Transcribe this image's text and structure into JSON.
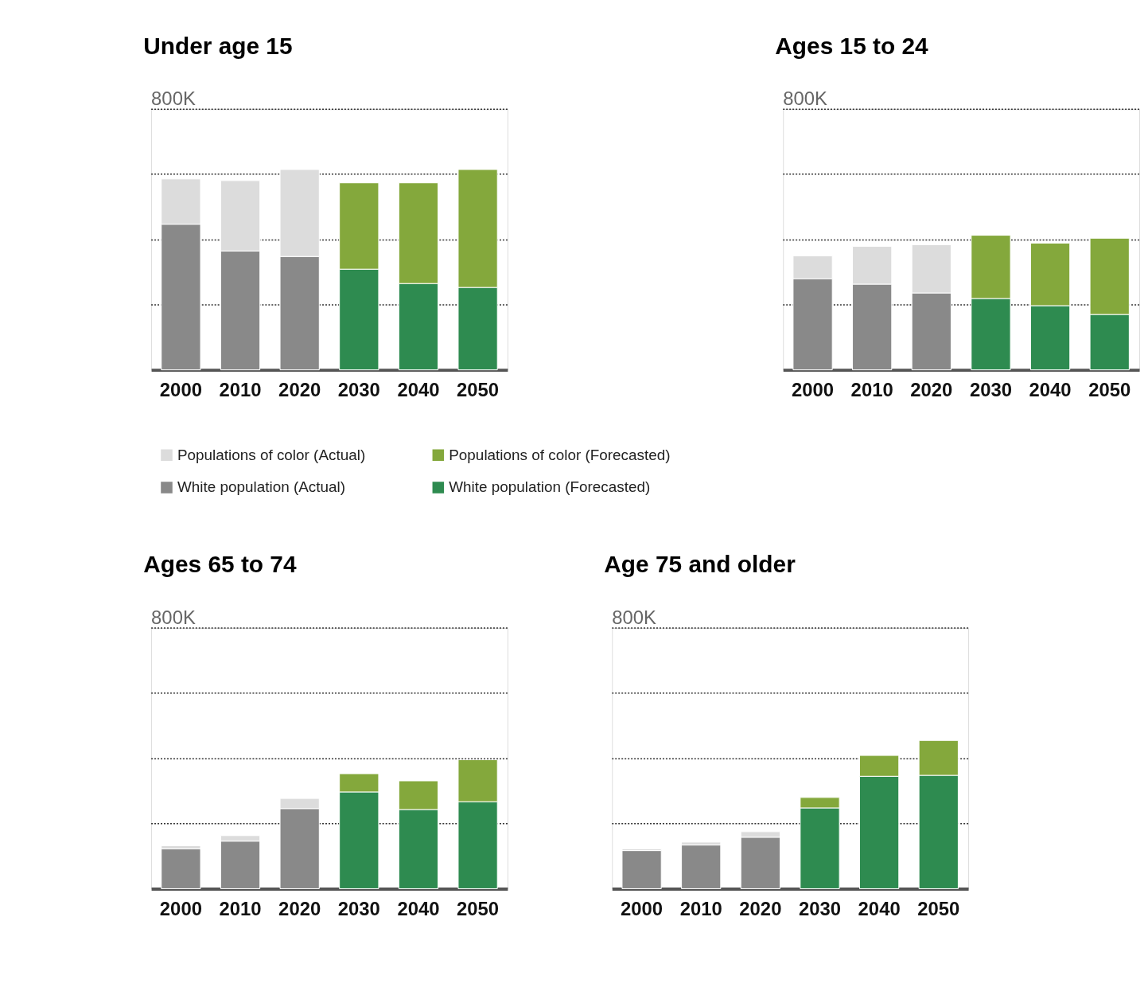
{
  "chart_data": [
    {
      "type": "bar",
      "title": "Under age 15",
      "stacked": true,
      "categories": [
        "2000",
        "2010",
        "2020",
        "2030",
        "2040",
        "2050"
      ],
      "ylim": [
        0,
        800000
      ],
      "yticks": [
        {
          "value": 200000,
          "label": null
        },
        {
          "value": 400000,
          "label": null
        },
        {
          "value": 600000,
          "label": null
        },
        {
          "value": 800000,
          "label": "800K"
        }
      ],
      "grid": "y",
      "legend": "bottom",
      "series": [
        {
          "name": "White population (Actual)",
          "color": "#898989",
          "values": [
            447000,
            365000,
            348000,
            null,
            null,
            null
          ]
        },
        {
          "name": "Populations of color (Actual)",
          "color": "#dcdcdc",
          "values": [
            139000,
            216000,
            267000,
            null,
            null,
            null
          ]
        },
        {
          "name": "White population (Forecasted)",
          "color": "#2e8b50",
          "values": [
            null,
            null,
            null,
            309000,
            265000,
            253000
          ]
        },
        {
          "name": "Populations of color (Forecasted)",
          "color": "#84a83c",
          "values": [
            null,
            null,
            null,
            265000,
            309000,
            362000
          ]
        }
      ]
    },
    {
      "type": "bar",
      "title": "Ages 15 to 24",
      "stacked": true,
      "categories": [
        "2000",
        "2010",
        "2020",
        "2030",
        "2040",
        "2050"
      ],
      "ylim": [
        0,
        800000
      ],
      "yticks": [
        {
          "value": 200000,
          "label": null
        },
        {
          "value": 400000,
          "label": null
        },
        {
          "value": 600000,
          "label": null
        },
        {
          "value": 800000,
          "label": "800K"
        }
      ],
      "grid": "y",
      "series": [
        {
          "color": "#898989",
          "values": [
            280000,
            263000,
            236000,
            null,
            null,
            null
          ]
        },
        {
          "color": "#dcdcdc",
          "values": [
            70000,
            116000,
            148000,
            null,
            null,
            null
          ]
        },
        {
          "color": "#2e8b50",
          "values": [
            null,
            null,
            null,
            219000,
            197000,
            170000
          ]
        },
        {
          "color": "#84a83c",
          "values": [
            null,
            null,
            null,
            194000,
            192000,
            234000
          ]
        }
      ]
    },
    {
      "type": "bar",
      "title": "Ages 65 to 74",
      "stacked": true,
      "categories": [
        "2000",
        "2010",
        "2020",
        "2030",
        "2040",
        "2050"
      ],
      "ylim": [
        0,
        800000
      ],
      "yticks": [
        {
          "value": 200000,
          "label": null
        },
        {
          "value": 400000,
          "label": null
        },
        {
          "value": 600000,
          "label": null
        },
        {
          "value": 800000,
          "label": "800K"
        }
      ],
      "grid": "y",
      "series": [
        {
          "color": "#898989",
          "values": [
            122000,
            146000,
            246000,
            null,
            null,
            null
          ]
        },
        {
          "color": "#dcdcdc",
          "values": [
            10000,
            17000,
            31000,
            null,
            null,
            null
          ]
        },
        {
          "color": "#2e8b50",
          "values": [
            null,
            null,
            null,
            297000,
            243000,
            267000
          ]
        },
        {
          "color": "#84a83c",
          "values": [
            null,
            null,
            null,
            56000,
            88000,
            129000
          ]
        }
      ]
    },
    {
      "type": "bar",
      "title": "Age 75 and older",
      "stacked": true,
      "categories": [
        "2000",
        "2010",
        "2020",
        "2030",
        "2040",
        "2050"
      ],
      "ylim": [
        0,
        800000
      ],
      "yticks": [
        {
          "value": 200000,
          "label": null
        },
        {
          "value": 400000,
          "label": null
        },
        {
          "value": 600000,
          "label": null
        },
        {
          "value": 800000,
          "label": "800K"
        }
      ],
      "grid": "y",
      "series": [
        {
          "color": "#898989",
          "values": [
            117000,
            134000,
            158000,
            null,
            null,
            null
          ]
        },
        {
          "color": "#dcdcdc",
          "values": [
            5000,
            9000,
            17000,
            null,
            null,
            null
          ]
        },
        {
          "color": "#2e8b50",
          "values": [
            null,
            null,
            null,
            248000,
            345000,
            348000
          ]
        },
        {
          "color": "#84a83c",
          "values": [
            null,
            null,
            null,
            32000,
            64000,
            107000
          ]
        }
      ]
    }
  ]
}
